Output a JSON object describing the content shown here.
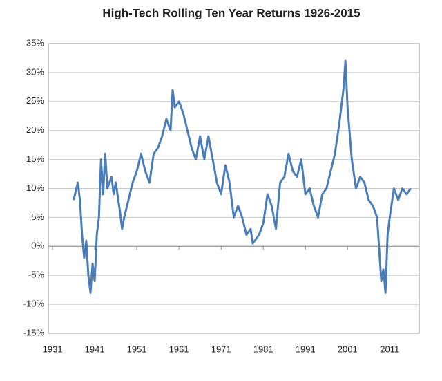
{
  "chart_data": {
    "type": "line",
    "title": "High-Tech Rolling  Ten Year Returns 1926-2015",
    "x": [
      1936,
      1937,
      1937.5,
      1938,
      1938.5,
      1939,
      1939.5,
      1940,
      1940.5,
      1941,
      1941.5,
      1942,
      1942.5,
      1943,
      1943.5,
      1944,
      1945,
      1945.5,
      1946,
      1947,
      1947.5,
      1948,
      1949,
      1950,
      1951,
      1952,
      1953,
      1954,
      1955,
      1956,
      1957,
      1958,
      1959,
      1959.5,
      1960,
      1961,
      1962,
      1963,
      1964,
      1965,
      1966,
      1967,
      1968,
      1969,
      1970,
      1971,
      1972,
      1973,
      1974,
      1975,
      1976,
      1977,
      1978,
      1978.5,
      1979,
      1980,
      1981,
      1982,
      1983,
      1984,
      1985,
      1986,
      1987,
      1988,
      1989,
      1990,
      1991,
      1992,
      1993,
      1994,
      1995,
      1996,
      1997,
      1998,
      1999,
      2000,
      2000.5,
      2001,
      2002,
      2003,
      2004,
      2005,
      2006,
      2007,
      2008,
      2009,
      2009.5,
      2010,
      2010.5,
      2011,
      2012,
      2013,
      2014,
      2015,
      2016
    ],
    "series": [
      {
        "name": "High-Tech",
        "color": "#4a7ebb",
        "values": [
          8,
          11,
          8,
          2,
          -2,
          1,
          -5,
          -8,
          -3,
          -6,
          2,
          5,
          15,
          9,
          16,
          10,
          12,
          9,
          11,
          6,
          3,
          5,
          8,
          11,
          13,
          16,
          13,
          11,
          16,
          17,
          19,
          22,
          20,
          27,
          24,
          25,
          23,
          20,
          17,
          15,
          19,
          15,
          19,
          15,
          11,
          9,
          14,
          11,
          5,
          7,
          5,
          2,
          3,
          0.5,
          1,
          2,
          4,
          9,
          7,
          3,
          11,
          12,
          16,
          13,
          12,
          15,
          9,
          10,
          7,
          5,
          9,
          10,
          13,
          16,
          21,
          27,
          32,
          24,
          15,
          10,
          12,
          11,
          8,
          7,
          5,
          -6,
          -4,
          -8,
          2,
          5,
          10,
          8,
          10,
          9,
          10
        ]
      }
    ],
    "xlim": [
      1930,
      2018
    ],
    "xticks": [
      1931,
      1941,
      1951,
      1961,
      1971,
      1981,
      1991,
      2001,
      2011
    ],
    "ylim": [
      -15,
      35
    ],
    "yticks": [
      {
        "value": -15,
        "label": "-15%"
      },
      {
        "value": -10,
        "label": "-10%"
      },
      {
        "value": -5,
        "label": "-5%"
      },
      {
        "value": 0,
        "label": "0%"
      },
      {
        "value": 5,
        "label": "5%"
      },
      {
        "value": 10,
        "label": "10%"
      },
      {
        "value": 15,
        "label": "15%"
      },
      {
        "value": 20,
        "label": "20%"
      },
      {
        "value": 25,
        "label": "25%"
      },
      {
        "value": 30,
        "label": "30%"
      },
      {
        "value": 35,
        "label": "35%"
      }
    ],
    "grid": true
  }
}
